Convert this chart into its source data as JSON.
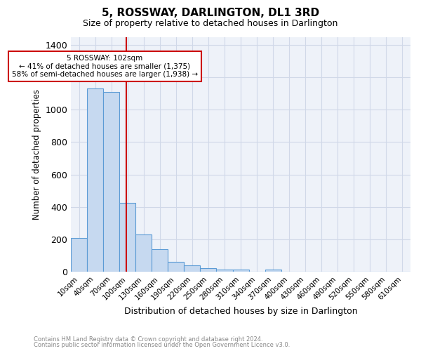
{
  "title": "5, ROSSWAY, DARLINGTON, DL1 3RD",
  "subtitle": "Size of property relative to detached houses in Darlington",
  "xlabel": "Distribution of detached houses by size in Darlington",
  "ylabel": "Number of detached properties",
  "footnote_line1": "Contains HM Land Registry data © Crown copyright and database right 2024.",
  "footnote_line2": "Contains public sector information licensed under the Open Government Licence v3.0.",
  "bar_labels": [
    "10sqm",
    "40sqm",
    "70sqm",
    "100sqm",
    "130sqm",
    "160sqm",
    "190sqm",
    "220sqm",
    "250sqm",
    "280sqm",
    "310sqm",
    "340sqm",
    "370sqm",
    "400sqm",
    "430sqm",
    "460sqm",
    "490sqm",
    "520sqm",
    "550sqm",
    "580sqm",
    "610sqm"
  ],
  "bar_values": [
    210,
    1130,
    1110,
    425,
    230,
    140,
    60,
    38,
    22,
    13,
    13,
    0,
    12,
    0,
    0,
    0,
    0,
    0,
    0,
    0,
    0
  ],
  "bar_color": "#c6d9f0",
  "bar_edge_color": "#5b9bd5",
  "grid_color": "#d0d8e8",
  "ylim": [
    0,
    1450
  ],
  "yticks": [
    0,
    200,
    400,
    600,
    800,
    1000,
    1200,
    1400
  ],
  "red_line_x": 2.92,
  "annotation_text": "5 ROSSWAY: 102sqm\n← 41% of detached houses are smaller (1,375)\n58% of semi-detached houses are larger (1,938) →",
  "annotation_box_color": "#ffffff",
  "annotation_border_color": "#cc0000",
  "background_color": "#eef2f9"
}
